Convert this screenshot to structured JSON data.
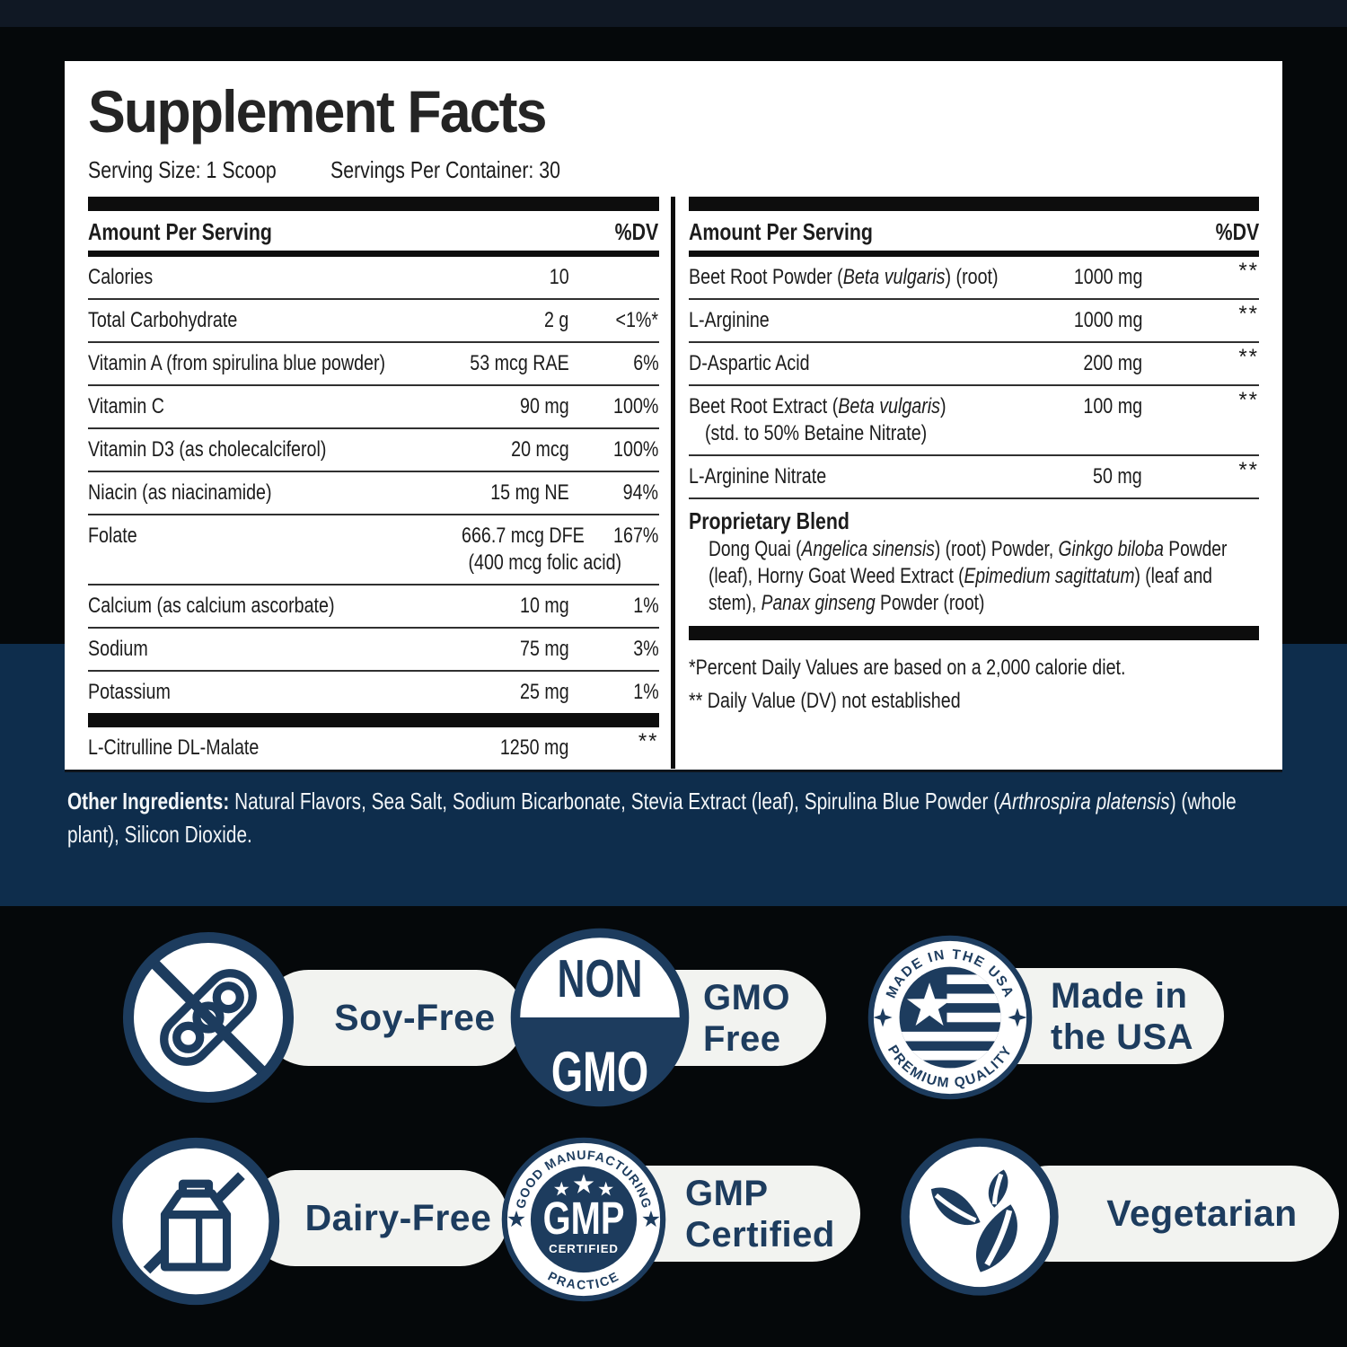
{
  "panel": {
    "title": "Supplement Facts",
    "serving_size_label": "Serving Size: 1 Scoop",
    "servings_per_container_label": "Servings Per Container: 30",
    "header": {
      "amount": "Amount Per Serving",
      "dv": "%DV"
    },
    "left_rows": [
      {
        "name": [
          "Calories"
        ],
        "amount": "10",
        "dv": ""
      },
      {
        "name": [
          "Total Carbohydrate"
        ],
        "amount": "2 g",
        "dv": "<1%*"
      },
      {
        "name": [
          "Vitamin A (from spirulina blue powder)"
        ],
        "amount": "53 mcg RAE",
        "dv": "6%"
      },
      {
        "name": [
          "Vitamin C"
        ],
        "amount": "90 mg",
        "dv": "100%"
      },
      {
        "name": [
          "Vitamin D3 (as cholecalciferol)"
        ],
        "amount": "20 mcg",
        "dv": "100%"
      },
      {
        "name": [
          "Niacin (as niacinamide)"
        ],
        "amount": "15 mg NE",
        "dv": "94%"
      },
      {
        "name": [
          "Folate"
        ],
        "amount": "666.7 mcg DFE",
        "amount_sub": "(400 mcg folic acid)",
        "dv": "167%"
      },
      {
        "name": [
          "Calcium (as calcium ascorbate)"
        ],
        "amount": "10 mg",
        "dv": "1%"
      },
      {
        "name": [
          "Sodium"
        ],
        "amount": "75 mg",
        "dv": "3%"
      },
      {
        "name": [
          "Potassium"
        ],
        "amount": "25 mg",
        "dv": "1%"
      },
      {
        "name": [
          "L-Citrulline DL-Malate"
        ],
        "amount": "1250 mg",
        "dv": "**",
        "bar_before": true
      }
    ],
    "right_rows": [
      {
        "name": [
          "Beet Root Powder (",
          {
            "i": "Beta vulgaris"
          },
          ") (root)"
        ],
        "amount": "1000 mg",
        "dv": "**"
      },
      {
        "name": [
          "L-Arginine"
        ],
        "amount": "1000 mg",
        "dv": "**"
      },
      {
        "name": [
          "D-Aspartic Acid"
        ],
        "amount": "200 mg",
        "dv": "**"
      },
      {
        "name": [
          "Beet Root Extract (",
          {
            "i": "Beta vulgaris"
          },
          ")"
        ],
        "name_sub": "(std. to 50% Betaine Nitrate)",
        "amount": "100 mg",
        "dv": "**"
      },
      {
        "name": [
          "L-Arginine Nitrate"
        ],
        "amount": "50 mg",
        "dv": "**"
      }
    ],
    "proprietary_blend": {
      "title": "Proprietary Blend",
      "description": [
        "Dong Quai (",
        {
          "i": "Angelica sinensis"
        },
        ") (root) Powder, ",
        {
          "i": "Ginkgo biloba"
        },
        " Powder (leaf), Horny Goat Weed Extract (",
        {
          "i": "Epimedium sagittatum"
        },
        ") (leaf and stem), ",
        {
          "i": "Panax ginseng"
        },
        " Powder (root)"
      ]
    },
    "footnotes": [
      "*Percent Daily Values are based on a 2,000 calorie diet.",
      "** Daily Value (DV) not established"
    ]
  },
  "other_ingredients": {
    "label": "Other Ingredients:",
    "text": [
      " Natural Flavors, Sea Salt, Sodium Bicarbonate, Stevia Extract (leaf), Spirulina Blue Powder (",
      {
        "i": "Arthrospira platensis"
      },
      ") (whole plant), Silicon Dioxide."
    ]
  },
  "badges": {
    "soy_free": {
      "label": "Soy-Free"
    },
    "non_gmo": {
      "seal_top": "NON",
      "seal_bottom": "GMO",
      "label_lines": [
        "GMO",
        "Free"
      ]
    },
    "made_usa": {
      "seal_arc_top": "MADE IN THE USA",
      "seal_arc_bottom": "PREMIUM QUALITY",
      "label_lines": [
        "Made in",
        "the USA"
      ]
    },
    "dairy_free": {
      "label": "Dairy-Free"
    },
    "gmp": {
      "seal_arc_top": "GOOD MANUFACTURING",
      "seal_arc_bottom": "PRACTICE",
      "seal_center": "GMP",
      "seal_sub": "CERTIFIED",
      "label_lines": [
        "GMP",
        "Certified"
      ]
    },
    "vegetarian": {
      "label": "Vegetarian"
    }
  },
  "colors": {
    "navy": "#1d3c5e",
    "band_navy": "#0e2d4c",
    "pill_bg": "#f2f3f0",
    "black_bg": "#05080a"
  }
}
